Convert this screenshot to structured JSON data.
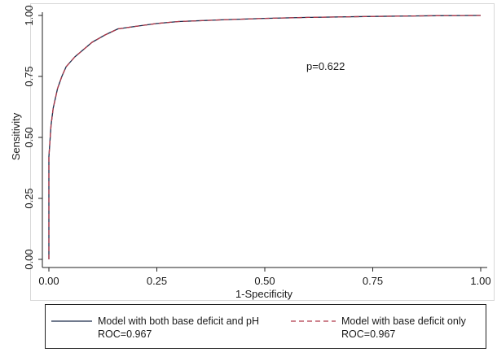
{
  "chart_data": {
    "type": "line",
    "xlabel": "1-Specificity",
    "ylabel": "Sensitivity",
    "xlim": [
      0,
      1
    ],
    "ylim": [
      0,
      1
    ],
    "x_ticks": [
      "0.00",
      "0.25",
      "0.50",
      "0.75",
      "1.00"
    ],
    "y_ticks": [
      "0.00",
      "0.25",
      "0.50",
      "0.75",
      "1.00"
    ],
    "grid": false,
    "annotation": "p=0.622",
    "legend_position": "bottom",
    "series": [
      {
        "name": "Model with both base deficit and pH",
        "stat": "ROC=0.967",
        "color": "#1b2a49",
        "dash": "solid",
        "points": [
          [
            0,
            0
          ],
          [
            0,
            0.42
          ],
          [
            0.005,
            0.55
          ],
          [
            0.01,
            0.62
          ],
          [
            0.02,
            0.7
          ],
          [
            0.03,
            0.75
          ],
          [
            0.04,
            0.79
          ],
          [
            0.06,
            0.83
          ],
          [
            0.08,
            0.86
          ],
          [
            0.1,
            0.89
          ],
          [
            0.13,
            0.92
          ],
          [
            0.16,
            0.945
          ],
          [
            0.2,
            0.955
          ],
          [
            0.25,
            0.967
          ],
          [
            0.3,
            0.975
          ],
          [
            0.4,
            0.982
          ],
          [
            0.5,
            0.988
          ],
          [
            0.6,
            0.992
          ],
          [
            0.75,
            0.996
          ],
          [
            0.9,
            0.999
          ],
          [
            1.0,
            1.0
          ]
        ]
      },
      {
        "name": "Model with base deficit only",
        "stat": "ROC=0.967",
        "color": "#b0394a",
        "dash": "dashed",
        "points": [
          [
            0,
            0
          ],
          [
            0,
            0.42
          ],
          [
            0.005,
            0.55
          ],
          [
            0.01,
            0.62
          ],
          [
            0.02,
            0.7
          ],
          [
            0.03,
            0.75
          ],
          [
            0.04,
            0.79
          ],
          [
            0.06,
            0.83
          ],
          [
            0.08,
            0.86
          ],
          [
            0.1,
            0.89
          ],
          [
            0.13,
            0.92
          ],
          [
            0.16,
            0.945
          ],
          [
            0.2,
            0.955
          ],
          [
            0.25,
            0.967
          ],
          [
            0.3,
            0.975
          ],
          [
            0.4,
            0.982
          ],
          [
            0.5,
            0.988
          ],
          [
            0.6,
            0.992
          ],
          [
            0.75,
            0.996
          ],
          [
            0.9,
            0.999
          ],
          [
            1.0,
            1.0
          ]
        ]
      }
    ]
  }
}
